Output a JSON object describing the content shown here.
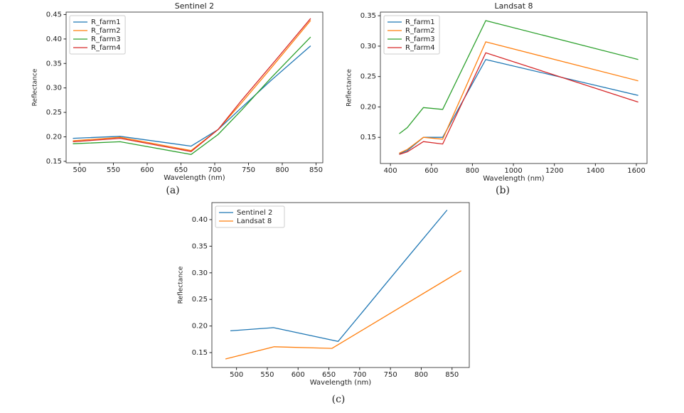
{
  "chart_data": [
    {
      "type": "line",
      "title": "Sentinel 2",
      "caption": "(a)",
      "xlabel": "Wavelength (nm)",
      "ylabel": "Reflectance",
      "x": [
        490,
        560,
        665,
        705,
        740,
        783,
        842
      ],
      "series": [
        {
          "name": "R_farm1",
          "color": "#1f77b4",
          "values": [
            0.197,
            0.201,
            0.181,
            0.215,
            0.26,
            0.315,
            0.386
          ]
        },
        {
          "name": "R_farm2",
          "color": "#ff7f0e",
          "values": [
            0.192,
            0.199,
            0.172,
            0.215,
            0.27,
            0.34,
            0.438
          ]
        },
        {
          "name": "R_farm3",
          "color": "#2ca02c",
          "values": [
            0.186,
            0.19,
            0.164,
            0.205,
            0.255,
            0.32,
            0.404
          ]
        },
        {
          "name": "R_farm4",
          "color": "#d62728",
          "values": [
            0.19,
            0.197,
            0.17,
            0.215,
            0.275,
            0.345,
            0.442
          ]
        }
      ],
      "xlim": [
        480,
        860
      ],
      "xticks": [
        500,
        550,
        600,
        650,
        700,
        750,
        800,
        850
      ],
      "ylim": [
        0.147,
        0.455
      ],
      "yticks": [
        0.15,
        {
          "value": 0.2,
          "label": "0.20"
        },
        0.25,
        {
          "value": 0.3,
          "label": "0.30"
        },
        0.35,
        {
          "value": 0.4,
          "label": "0.40"
        },
        0.45
      ],
      "legend": "upper left"
    },
    {
      "type": "line",
      "title": "Landsat 8",
      "caption": "(b)",
      "xlabel": "Wavelength (nm)",
      "ylabel": "Reflectance",
      "x": [
        443,
        482,
        561,
        655,
        865,
        1609
      ],
      "series": [
        {
          "name": "R_farm1",
          "color": "#1f77b4",
          "values": [
            0.123,
            0.128,
            0.15,
            0.15,
            0.278,
            0.219
          ]
        },
        {
          "name": "R_farm2",
          "color": "#ff7f0e",
          "values": [
            0.124,
            0.13,
            0.15,
            0.147,
            0.307,
            0.243
          ]
        },
        {
          "name": "R_farm3",
          "color": "#2ca02c",
          "values": [
            0.156,
            0.166,
            0.199,
            0.196,
            0.342,
            0.278
          ]
        },
        {
          "name": "R_farm4",
          "color": "#d62728",
          "values": [
            0.122,
            0.126,
            0.143,
            0.139,
            0.289,
            0.208
          ]
        }
      ],
      "xlim": [
        351,
        1652
      ],
      "xticks": [
        400,
        600,
        800,
        1000,
        1200,
        1400,
        1600
      ],
      "ylim": [
        0.107,
        0.356
      ],
      "yticks": [
        0.15,
        {
          "value": 0.2,
          "label": "0.20"
        },
        0.25,
        {
          "value": 0.3,
          "label": "0.30"
        },
        0.35
      ],
      "legend": "upper left"
    },
    {
      "type": "line",
      "caption": "(c)",
      "xlabel": "Wavelength (nm)",
      "ylabel": "Reflectance",
      "series": [
        {
          "name": "Sentinel 2",
          "color": "#1f77b4",
          "x": [
            490,
            560,
            665,
            705,
            740,
            783,
            842
          ],
          "values": [
            0.191,
            0.197,
            0.171,
            0.227,
            0.276,
            0.336,
            0.418
          ]
        },
        {
          "name": "Landsat 8",
          "color": "#ff7f0e",
          "x": [
            482,
            561,
            655,
            865
          ],
          "values": [
            0.138,
            0.161,
            0.158,
            0.304
          ]
        }
      ],
      "xlim": [
        460,
        878
      ],
      "xticks": [
        500,
        550,
        600,
        650,
        700,
        750,
        800,
        850
      ],
      "ylim": [
        0.122,
        0.432
      ],
      "yticks": [
        0.15,
        {
          "value": 0.2,
          "label": "0.20"
        },
        0.25,
        {
          "value": 0.3,
          "label": "0.30"
        },
        0.35,
        {
          "value": 0.4,
          "label": "0.40"
        }
      ],
      "legend": "upper left"
    }
  ]
}
